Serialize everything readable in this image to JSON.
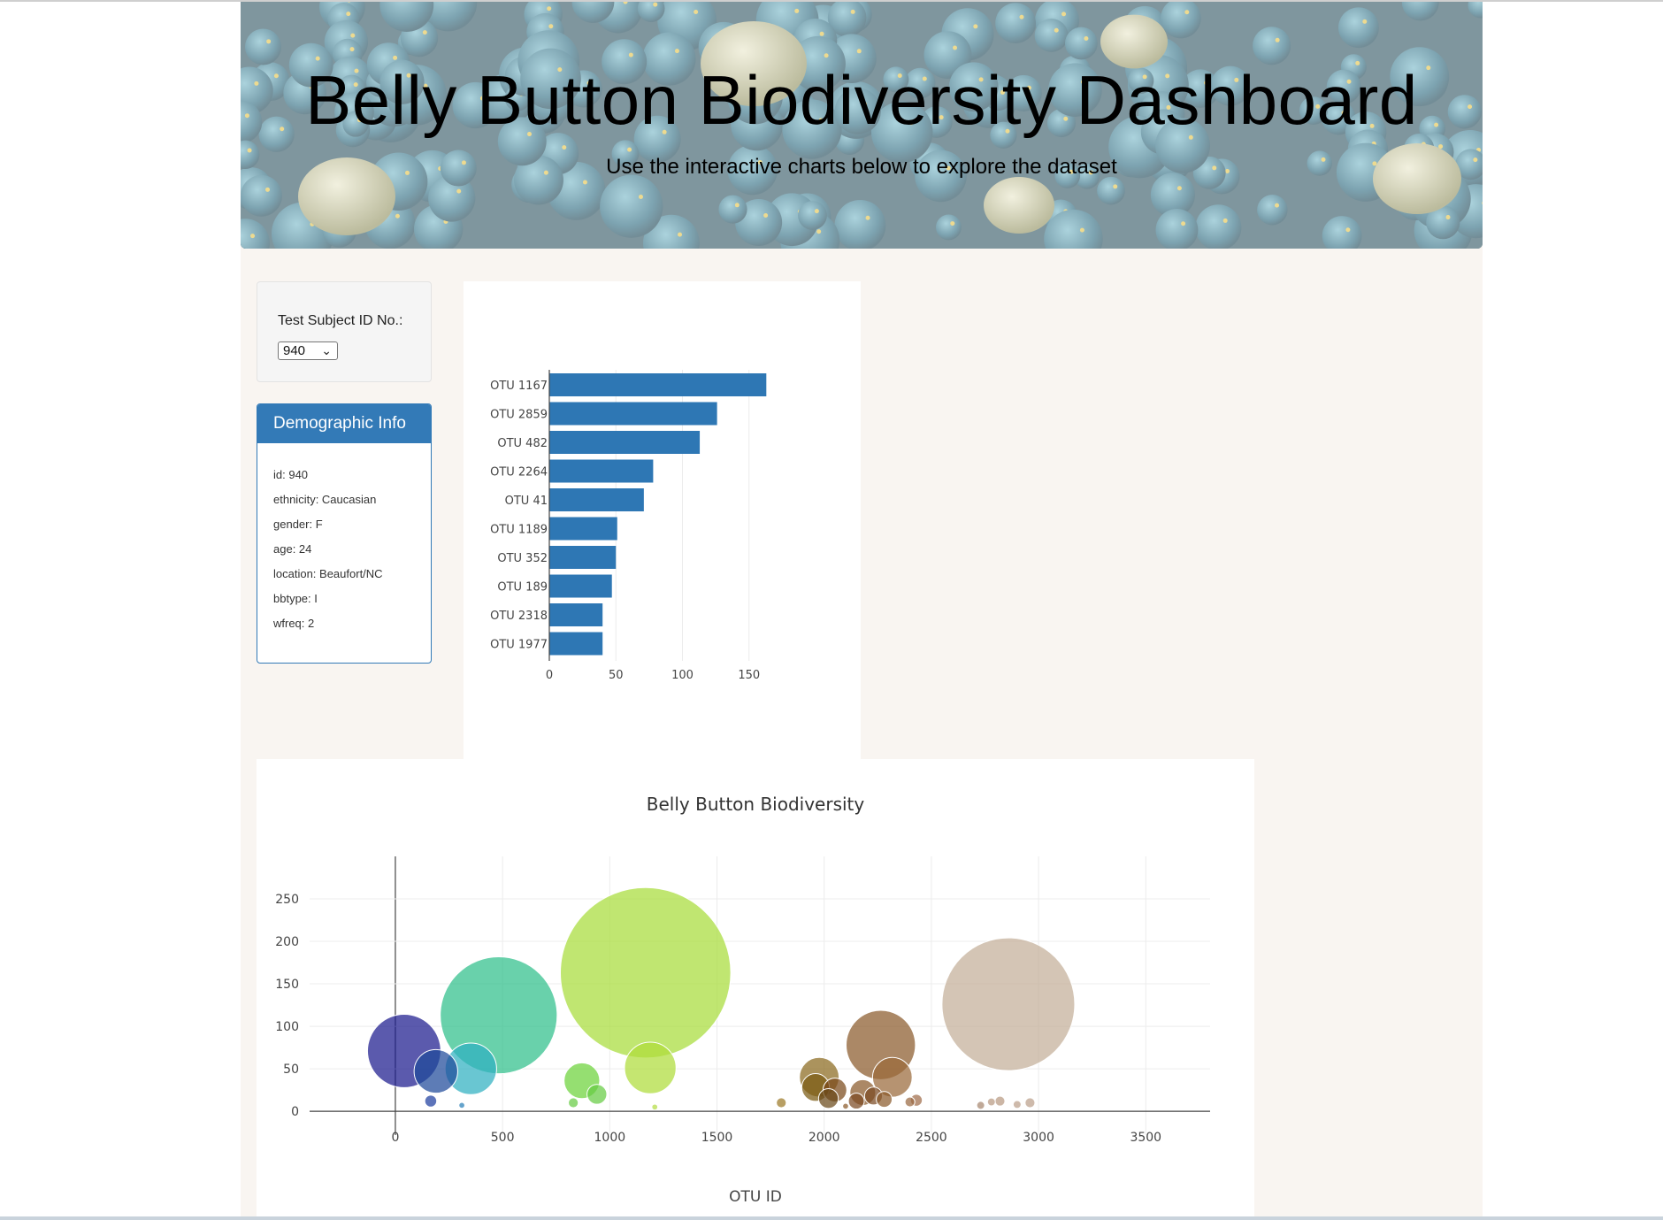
{
  "header": {
    "title": "Belly Button Biodiversity Dashboard",
    "subtitle": "Use the interactive charts below to explore the dataset"
  },
  "selector": {
    "label": "Test Subject ID No.:",
    "selected": "940"
  },
  "demographics": {
    "heading": "Demographic Info",
    "rows": [
      "id: 940",
      "ethnicity: Caucasian",
      "gender: F",
      "age: 24",
      "location: Beaufort/NC",
      "bbtype: I",
      "wfreq: 2"
    ]
  },
  "chart_data": [
    {
      "type": "bar",
      "orientation": "horizontal",
      "color": "#2e77b4",
      "categories": [
        "OTU 1167",
        "OTU 2859",
        "OTU 482",
        "OTU 2264",
        "OTU 41",
        "OTU 1189",
        "OTU 352",
        "OTU 189",
        "OTU 2318",
        "OTU 1977"
      ],
      "values": [
        163,
        126,
        113,
        78,
        71,
        51,
        50,
        47,
        40,
        40
      ],
      "xticks": [
        0,
        50,
        100,
        150
      ],
      "xlim": [
        0,
        172
      ]
    },
    {
      "type": "scatter",
      "title": "Belly Button Biodiversity",
      "xlabel": "OTU ID",
      "xlim": [
        -400,
        3800
      ],
      "ylim": [
        -28,
        300
      ],
      "xticks": [
        0,
        500,
        1000,
        1500,
        2000,
        2500,
        3000,
        3500
      ],
      "yticks": [
        0,
        50,
        100,
        150,
        200,
        250
      ],
      "points": [
        {
          "x": 41,
          "y": 71,
          "color": "#1c1a8e"
        },
        {
          "x": 189,
          "y": 47,
          "color": "#1e4a9a"
        },
        {
          "x": 352,
          "y": 50,
          "color": "#2fb0c0"
        },
        {
          "x": 482,
          "y": 113,
          "color": "#2fbf8a"
        },
        {
          "x": 1167,
          "y": 163,
          "color": "#a8dd3a"
        },
        {
          "x": 1189,
          "y": 51,
          "color": "#aedd3a"
        },
        {
          "x": 870,
          "y": 36,
          "color": "#6cd23a"
        },
        {
          "x": 940,
          "y": 20,
          "color": "#66cc44"
        },
        {
          "x": 2264,
          "y": 78,
          "color": "#8b5a2b"
        },
        {
          "x": 2318,
          "y": 40,
          "color": "#9a6a3a"
        },
        {
          "x": 2859,
          "y": 126,
          "color": "#c4ae98"
        },
        {
          "x": 1977,
          "y": 40,
          "color": "#8b6a1f"
        },
        {
          "x": 1960,
          "y": 28,
          "color": "#7a5a12"
        },
        {
          "x": 2050,
          "y": 25,
          "color": "#7a4a1a"
        },
        {
          "x": 2180,
          "y": 22,
          "color": "#8b5a2b"
        },
        {
          "x": 2230,
          "y": 18,
          "color": "#7a4a22"
        },
        {
          "x": 2280,
          "y": 14,
          "color": "#8b5a2b"
        },
        {
          "x": 2020,
          "y": 15,
          "color": "#6b4a1a"
        },
        {
          "x": 2150,
          "y": 12,
          "color": "#7b4a22"
        },
        {
          "x": 2430,
          "y": 13,
          "color": "#a06c4a"
        },
        {
          "x": 2400,
          "y": 11,
          "color": "#9a6a42"
        },
        {
          "x": 1800,
          "y": 10,
          "color": "#9c7a28"
        },
        {
          "x": 165,
          "y": 12,
          "color": "#1e3fa0"
        },
        {
          "x": 310,
          "y": 7,
          "color": "#2a7fb8"
        },
        {
          "x": 830,
          "y": 10,
          "color": "#66cc44"
        },
        {
          "x": 2820,
          "y": 12,
          "color": "#b89a82"
        },
        {
          "x": 2780,
          "y": 11,
          "color": "#b89a82"
        },
        {
          "x": 2960,
          "y": 10,
          "color": "#bba08a"
        },
        {
          "x": 2900,
          "y": 8,
          "color": "#bba08a"
        },
        {
          "x": 2730,
          "y": 7,
          "color": "#a88870"
        },
        {
          "x": 1210,
          "y": 5,
          "color": "#b4dd44"
        },
        {
          "x": 2100,
          "y": 6,
          "color": "#8b5a2b"
        }
      ],
      "marker_sizes": [
        37,
        22,
        26,
        59,
        86,
        26,
        18,
        10,
        35,
        20,
        67,
        20,
        14,
        12,
        13,
        9,
        8,
        10,
        8,
        6,
        5,
        5,
        6,
        3,
        5,
        5,
        4,
        5,
        4,
        4,
        3,
        3
      ]
    }
  ]
}
